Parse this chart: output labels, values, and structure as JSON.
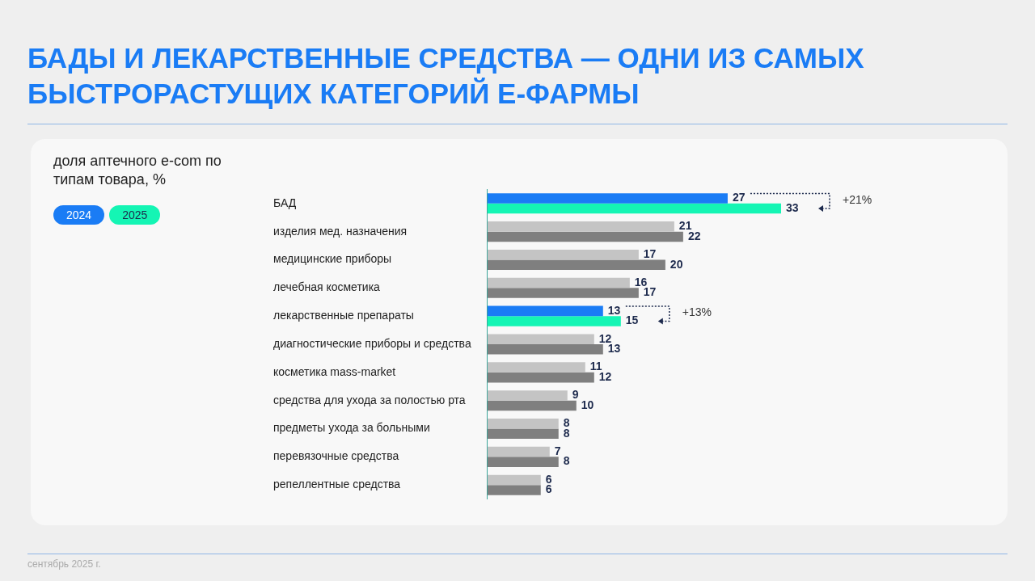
{
  "chart_data": {
    "type": "bar",
    "orientation": "horizontal",
    "title": "БАДЫ И ЛЕКАРСТВЕННЫЕ СРЕДСТВА — ОДНИ ИЗ САМЫХ БЫСТРОРАСТУЩИХ КАТЕГОРИЙ Е-ФАРМЫ",
    "subtitle": "доля аптечного e-com по типам товара, %",
    "categories": [
      "БАД",
      "изделия мед. назначения",
      "медицинские приборы",
      "лечебная косметика",
      "лекарственные препараты",
      "диагностические приборы и средства",
      "косметика mass-market",
      "средства для ухода за полостью рта",
      "предметы ухода за больными",
      "перевязочные средства",
      "репеллентные средства"
    ],
    "series": [
      {
        "name": "2024",
        "color": "#1a7cf5",
        "colors": [
          "#1a7cf5",
          "#c4c4c4",
          "#c4c4c4",
          "#c4c4c4",
          "#1a7cf5",
          "#c4c4c4",
          "#c4c4c4",
          "#c4c4c4",
          "#c4c4c4",
          "#c4c4c4",
          "#c4c4c4"
        ],
        "values": [
          27,
          21,
          17,
          16,
          13,
          12,
          11,
          9,
          8,
          7,
          6
        ]
      },
      {
        "name": "2025",
        "color": "#14f5b4",
        "colors": [
          "#14f5b4",
          "#7f7f7f",
          "#7f7f7f",
          "#7f7f7f",
          "#14f5b4",
          "#7f7f7f",
          "#7f7f7f",
          "#7f7f7f",
          "#7f7f7f",
          "#7f7f7f",
          "#7f7f7f"
        ],
        "values": [
          33,
          22,
          20,
          17,
          15,
          13,
          12,
          10,
          8,
          8,
          6
        ]
      }
    ],
    "tick_labels": "y",
    "grid": false,
    "legend": "top left",
    "data_labels": true,
    "annotations": [
      "+21%",
      "+13%",
      "сентябрь 2025 г."
    ]
  }
}
